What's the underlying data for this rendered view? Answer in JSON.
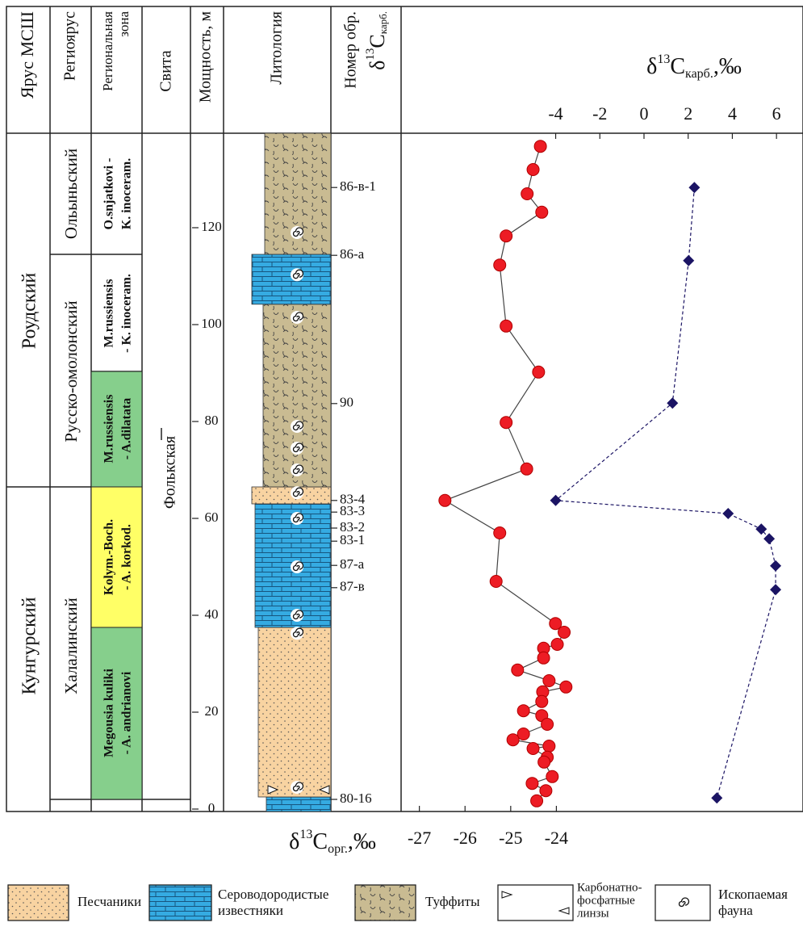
{
  "header": {
    "stage": "Ярус МСШ",
    "regional_stage": "Региоярус",
    "regional_zone": [
      "Региональная",
      "зона"
    ],
    "formation": "Свита",
    "thickness": "Мощность, м",
    "lithology": "Литология",
    "sample": {
      "line1": "Номер обр.",
      "delta": "δ",
      "mass": "13",
      "element": "C",
      "sub": "карб."
    }
  },
  "stages": [
    "Роудский",
    "Кунгурский"
  ],
  "regional_stages": [
    "Ольыньский",
    "Русско-омолонский",
    "Халалинский"
  ],
  "zones": [
    [
      "O.snjatkovi -",
      "K. inoceram."
    ],
    [
      "M.russiensis",
      "- K. inoceram."
    ],
    [
      "M.russiensis",
      "- A.dilatata"
    ],
    [
      "Kolym.-Boch.",
      "- A. korkod."
    ],
    [
      "Megousia kuliki",
      "- A. andrianovi"
    ]
  ],
  "formation": "Фолькская",
  "legend": [
    [
      "Песчаники"
    ],
    [
      "Сероводородистые",
      "известняки"
    ],
    [
      "Туффиты"
    ],
    [
      "Карбонатно-",
      "фосфатные",
      "линзы"
    ],
    [
      "Ископаемая",
      "фауна"
    ]
  ],
  "chart_data": {
    "type": "scatter",
    "title": {
      "delta": "δ",
      "mass": "13",
      "element": "C",
      "sub": "карб.",
      "unit": ",‰"
    },
    "x_label": {
      "delta": "δ",
      "mass": "13",
      "element": "C",
      "sub": "орг.",
      "unit": ",‰"
    },
    "ylim": [
      -0.5,
      139.5
    ],
    "yticks": [
      0,
      20,
      40,
      60,
      80,
      100,
      120
    ],
    "xlim": [
      -27.4,
      -18.6
    ],
    "xticks": [
      -27,
      -26,
      -25,
      -24
    ],
    "x2lim": [
      -11,
      7.2
    ],
    "x2ticks": [
      -4,
      -2,
      0,
      2,
      4,
      6
    ],
    "samples": {
      "labels": [
        "86-в-1",
        "86-а",
        "90",
        "83-4",
        "83-3",
        "83-2",
        "83-1",
        "87-а",
        "87-в",
        "80-16"
      ],
      "depths": [
        128.3,
        114.3,
        83.7,
        63.7,
        61.3,
        58,
        55.3,
        50.3,
        45.7,
        2
      ]
    },
    "series": [
      {
        "color": "#ed1c24",
        "marker": "circle",
        "x": [
          -24.35,
          -24.51,
          -24.64,
          -24.32,
          -25.1,
          -25.24,
          -25.1,
          -24.39,
          -25.1,
          -24.65,
          -26.44,
          -25.24,
          -25.32,
          -24.02,
          -23.83,
          -23.98,
          -24.28,
          -24.28,
          -24.85,
          -24.16,
          -23.79,
          -24.3,
          -24.32,
          -24.72,
          -24.32,
          -24.2,
          -24.72,
          -24.95,
          -24.16,
          -24.51,
          -24.2,
          -24.27,
          -24.09,
          -24.53,
          -24.23,
          -24.43
        ],
        "y": [
          136.8,
          132,
          127,
          123.2,
          118.3,
          112.3,
          99.7,
          90.2,
          79.8,
          70.2,
          63.7,
          57,
          47,
          38.3,
          36.5,
          34,
          33.2,
          31.2,
          28.7,
          26.5,
          25.2,
          24.2,
          22.2,
          20.3,
          19.3,
          17.5,
          15.5,
          14.3,
          13,
          12.5,
          10.7,
          9.7,
          6.7,
          5.3,
          3.8,
          1.7
        ]
      },
      {
        "axis": "x2",
        "color": "#1b1464",
        "marker": "diamond",
        "x": [
          2.28,
          2.02,
          1.29,
          -4,
          3.81,
          5.31,
          5.67,
          5.96,
          5.96,
          3.3
        ],
        "y": [
          128.3,
          113.2,
          83.8,
          63.7,
          61,
          57.8,
          55.8,
          50.2,
          45.3,
          2.3
        ]
      }
    ]
  }
}
